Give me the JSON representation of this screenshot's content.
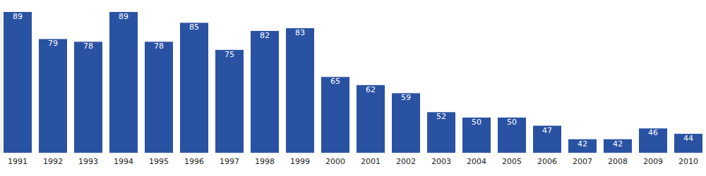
{
  "chart_data": {
    "type": "bar",
    "categories": [
      "1991",
      "1992",
      "1993",
      "1994",
      "1995",
      "1996",
      "1997",
      "1998",
      "1999",
      "2000",
      "2001",
      "2002",
      "2003",
      "2004",
      "2005",
      "2006",
      "2007",
      "2008",
      "2009",
      "2010"
    ],
    "values": [
      89,
      79,
      78,
      89,
      78,
      85,
      75,
      82,
      83,
      65,
      62,
      59,
      52,
      50,
      50,
      47,
      42,
      42,
      46,
      44
    ],
    "color": "#2a52a3",
    "ylim": [
      37,
      89
    ],
    "data_labels": true,
    "tick_labels": "x"
  }
}
